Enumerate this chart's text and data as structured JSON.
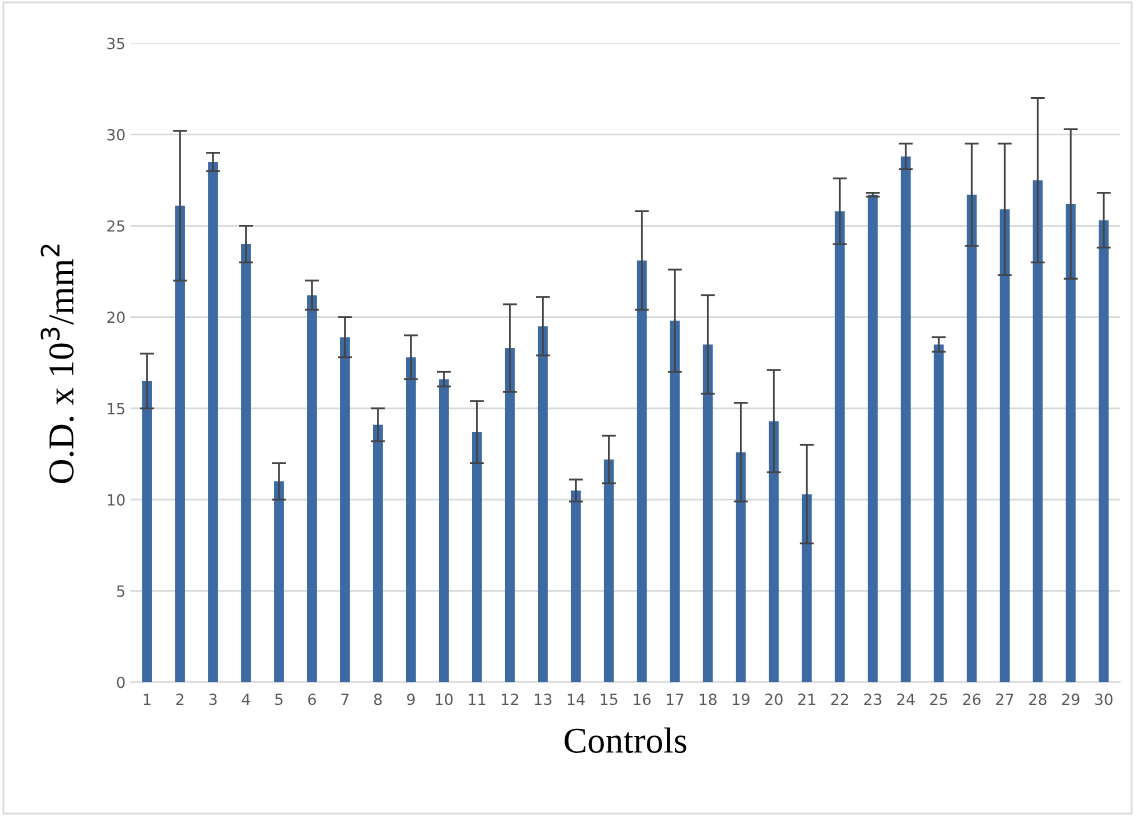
{
  "chart_data": {
    "type": "bar",
    "xlabel": "Controls",
    "ylabel": "O.D. x 10$^{3}$/mm$^{2}$",
    "categories": [
      "1",
      "2",
      "3",
      "4",
      "5",
      "6",
      "7",
      "8",
      "9",
      "10",
      "11",
      "12",
      "13",
      "14",
      "15",
      "16",
      "17",
      "18",
      "19",
      "20",
      "21",
      "22",
      "23",
      "24",
      "25",
      "26",
      "27",
      "28",
      "29",
      "30"
    ],
    "values": [
      16.5,
      26.1,
      28.5,
      24.0,
      11.0,
      21.2,
      18.9,
      14.1,
      17.8,
      16.6,
      13.7,
      18.3,
      19.5,
      10.5,
      12.2,
      23.1,
      19.8,
      18.5,
      12.6,
      14.3,
      10.3,
      25.8,
      26.7,
      28.8,
      18.5,
      26.7,
      25.9,
      27.5,
      26.2,
      25.3
    ],
    "errors": [
      1.5,
      4.1,
      0.5,
      1.0,
      1.0,
      0.8,
      1.1,
      0.9,
      1.2,
      0.4,
      1.7,
      2.4,
      1.6,
      0.6,
      1.3,
      2.7,
      2.8,
      2.7,
      2.7,
      2.8,
      2.7,
      1.8,
      0.1,
      0.7,
      0.4,
      2.8,
      3.6,
      4.5,
      4.1,
      1.5
    ],
    "color": "#3e6aa3",
    "ylim": [
      0,
      35
    ],
    "yticks": [
      0,
      5,
      10,
      15,
      20,
      25,
      30,
      35
    ],
    "grid": "y",
    "legend": false
  }
}
